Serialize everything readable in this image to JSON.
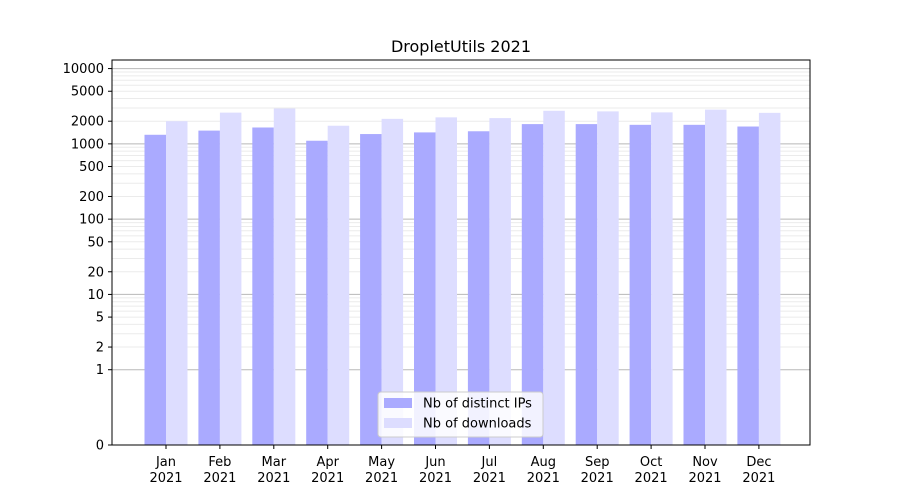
{
  "chart_data": {
    "type": "bar",
    "title": "DropletUtils 2021",
    "xlabel": "",
    "ylabel": "",
    "yscale": "symlog",
    "ylim": [
      0,
      13000
    ],
    "yticks": [
      0,
      1,
      2,
      5,
      10,
      20,
      50,
      100,
      200,
      500,
      1000,
      2000,
      5000,
      10000
    ],
    "ytick_labels": [
      "0",
      "1",
      "2",
      "5",
      "10",
      "20",
      "50",
      "100",
      "200",
      "500",
      "1000",
      "2000",
      "5000",
      "10000"
    ],
    "grid": true,
    "categories": [
      [
        "Jan",
        "2021"
      ],
      [
        "Feb",
        "2021"
      ],
      [
        "Mar",
        "2021"
      ],
      [
        "Apr",
        "2021"
      ],
      [
        "May",
        "2021"
      ],
      [
        "Jun",
        "2021"
      ],
      [
        "Jul",
        "2021"
      ],
      [
        "Aug",
        "2021"
      ],
      [
        "Sep",
        "2021"
      ],
      [
        "Oct",
        "2021"
      ],
      [
        "Nov",
        "2021"
      ],
      [
        "Dec",
        "2021"
      ]
    ],
    "series": [
      {
        "name": "Nb of distinct IPs",
        "color": "#aaaaff",
        "values": [
          1320,
          1500,
          1650,
          1100,
          1350,
          1420,
          1470,
          1830,
          1830,
          1790,
          1790,
          1700
        ]
      },
      {
        "name": "Nb of downloads",
        "color": "#ddddff",
        "values": [
          2000,
          2600,
          2950,
          1740,
          2150,
          2250,
          2200,
          2750,
          2700,
          2620,
          2850,
          2580
        ]
      }
    ],
    "legend_position": "bottom-center"
  }
}
